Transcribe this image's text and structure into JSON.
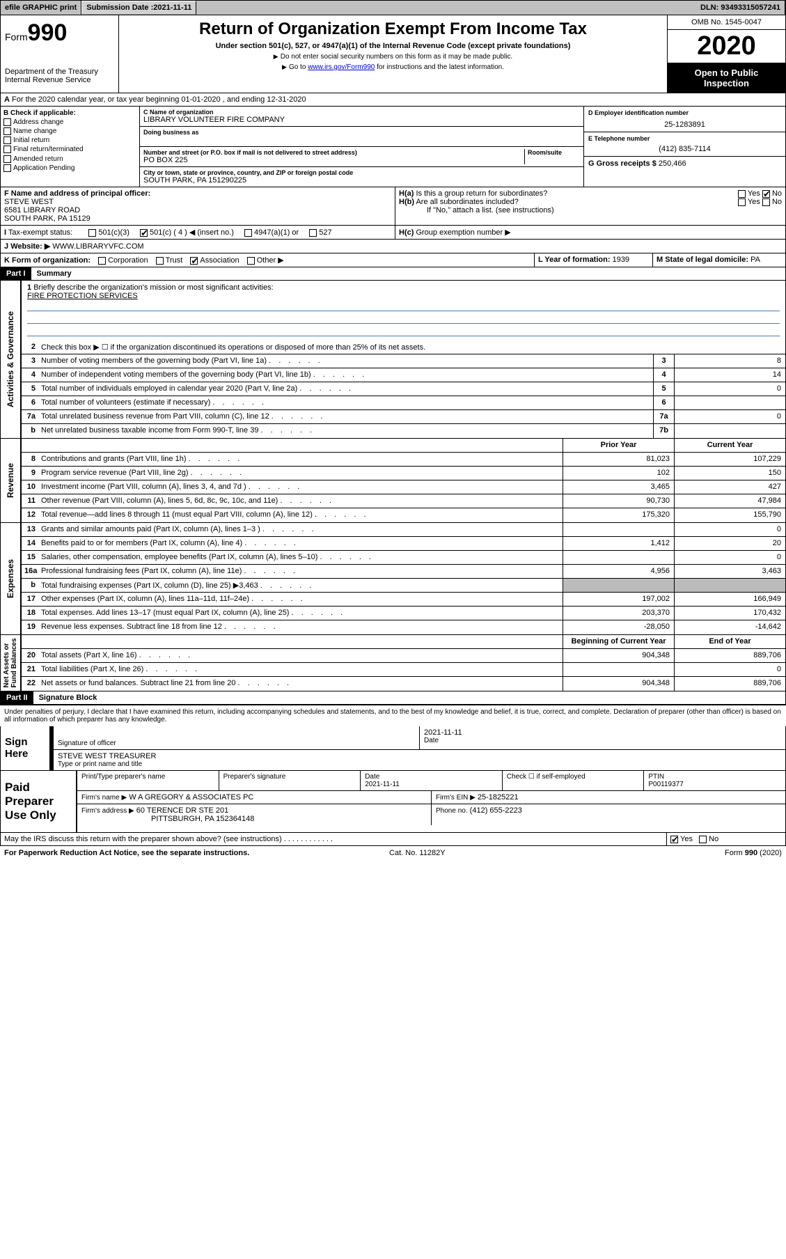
{
  "top": {
    "efile": "efile GRAPHIC print",
    "subdate_lbl": "Submission Date :",
    "subdate": "2021-11-11",
    "dln": "DLN: 93493315057241"
  },
  "head": {
    "form": "Form",
    "num": "990",
    "dept": "Department of the Treasury\nInternal Revenue Service",
    "title": "Return of Organization Exempt From Income Tax",
    "sub": "Under section 501(c), 527, or 4947(a)(1) of the Internal Revenue Code (except private foundations)",
    "note1": "Do not enter social security numbers on this form as it may be made public.",
    "note2a": "Go to ",
    "note2link": "www.irs.gov/Form990",
    "note2b": " for instructions and the latest information.",
    "omb": "OMB No. 1545-0047",
    "year": "2020",
    "open": "Open to Public Inspection"
  },
  "a": {
    "line": "For the 2020 calendar year, or tax year beginning 01-01-2020    , and ending 12-31-2020"
  },
  "b": {
    "hdr": "B Check if applicable:",
    "opts": [
      "Address change",
      "Name change",
      "Initial return",
      "Final return/terminated",
      "Amended return",
      "Application Pending"
    ]
  },
  "c": {
    "name_lbl": "C Name of organization",
    "name": "LIBRARY VOLUNTEER FIRE COMPANY",
    "dba_lbl": "Doing business as",
    "addr_lbl": "Number and street (or P.O. box if mail is not delivered to street address)",
    "room_lbl": "Room/suite",
    "addr": "PO BOX 225",
    "city_lbl": "City or town, state or province, country, and ZIP or foreign postal code",
    "city": "SOUTH PARK, PA  151290225"
  },
  "d": {
    "lbl": "D Employer identification number",
    "val": "25-1283891"
  },
  "e": {
    "lbl": "E Telephone number",
    "val": "(412) 835-7114"
  },
  "g": {
    "lbl": "G Gross receipts $",
    "val": "250,466"
  },
  "f": {
    "lbl": "F Name and address of principal officer:",
    "name": "STEVE WEST",
    "addr1": "6581 LIBRARY ROAD",
    "addr2": "SOUTH PARK, PA  15129"
  },
  "h": {
    "a": "Is this a group return for subordinates?",
    "b": "Are all subordinates included?",
    "bnote": "If \"No,\" attach a list. (see instructions)",
    "c": "Group exemption number ▶"
  },
  "i": {
    "lbl": "Tax-exempt status:",
    "opts": [
      "501(c)(3)",
      "501(c) ( 4 ) ◀ (insert no.)",
      "4947(a)(1) or",
      "527"
    ]
  },
  "j": {
    "lbl": "Website: ▶",
    "val": "WWW.LIBRARYVFC.COM"
  },
  "k": {
    "lbl": "K Form of organization:",
    "opts": [
      "Corporation",
      "Trust",
      "Association",
      "Other ▶"
    ]
  },
  "l": {
    "lbl": "L Year of formation:",
    "val": "1939"
  },
  "m": {
    "lbl": "M State of legal domicile:",
    "val": "PA"
  },
  "part1": {
    "title": "Part I",
    "sub": "Summary"
  },
  "summary": {
    "q1": "Briefly describe the organization's mission or most significant activities:",
    "mission": "FIRE PROTECTION SERVICES",
    "q2": "Check this box ▶ ☐  if the organization discontinued its operations or disposed of more than 25% of its net assets.",
    "rows": [
      {
        "n": "3",
        "d": "Number of voting members of the governing body (Part VI, line 1a)",
        "box": "3",
        "v": "8"
      },
      {
        "n": "4",
        "d": "Number of independent voting members of the governing body (Part VI, line 1b)",
        "box": "4",
        "v": "14"
      },
      {
        "n": "5",
        "d": "Total number of individuals employed in calendar year 2020 (Part V, line 2a)",
        "box": "5",
        "v": "0"
      },
      {
        "n": "6",
        "d": "Total number of volunteers (estimate if necessary)",
        "box": "6",
        "v": ""
      },
      {
        "n": "7a",
        "d": "Total unrelated business revenue from Part VIII, column (C), line 12",
        "box": "7a",
        "v": "0"
      },
      {
        "n": "b",
        "d": "Net unrelated business taxable income from Form 990-T, line 39",
        "box": "7b",
        "v": ""
      }
    ]
  },
  "cols": {
    "prior": "Prior Year",
    "current": "Current Year",
    "boy": "Beginning of Current Year",
    "eoy": "End of Year"
  },
  "revenue": [
    {
      "n": "8",
      "d": "Contributions and grants (Part VIII, line 1h)",
      "p": "81,023",
      "c": "107,229"
    },
    {
      "n": "9",
      "d": "Program service revenue (Part VIII, line 2g)",
      "p": "102",
      "c": "150"
    },
    {
      "n": "10",
      "d": "Investment income (Part VIII, column (A), lines 3, 4, and 7d )",
      "p": "3,465",
      "c": "427"
    },
    {
      "n": "11",
      "d": "Other revenue (Part VIII, column (A), lines 5, 6d, 8c, 9c, 10c, and 11e)",
      "p": "90,730",
      "c": "47,984"
    },
    {
      "n": "12",
      "d": "Total revenue—add lines 8 through 11 (must equal Part VIII, column (A), line 12)",
      "p": "175,320",
      "c": "155,790"
    }
  ],
  "expenses": [
    {
      "n": "13",
      "d": "Grants and similar amounts paid (Part IX, column (A), lines 1–3 )",
      "p": "",
      "c": "0"
    },
    {
      "n": "14",
      "d": "Benefits paid to or for members (Part IX, column (A), line 4)",
      "p": "1,412",
      "c": "20"
    },
    {
      "n": "15",
      "d": "Salaries, other compensation, employee benefits (Part IX, column (A), lines 5–10)",
      "p": "",
      "c": "0"
    },
    {
      "n": "16a",
      "d": "Professional fundraising fees (Part IX, column (A), line 11e)",
      "p": "4,956",
      "c": "3,463"
    },
    {
      "n": "b",
      "d": "Total fundraising expenses (Part IX, column (D), line 25) ▶3,463",
      "p": "shade",
      "c": "shade"
    },
    {
      "n": "17",
      "d": "Other expenses (Part IX, column (A), lines 11a–11d, 11f–24e)",
      "p": "197,002",
      "c": "166,949"
    },
    {
      "n": "18",
      "d": "Total expenses. Add lines 13–17 (must equal Part IX, column (A), line 25)",
      "p": "203,370",
      "c": "170,432"
    },
    {
      "n": "19",
      "d": "Revenue less expenses. Subtract line 18 from line 12",
      "p": "-28,050",
      "c": "-14,642"
    }
  ],
  "netassets": [
    {
      "n": "20",
      "d": "Total assets (Part X, line 16)",
      "p": "904,348",
      "c": "889,706"
    },
    {
      "n": "21",
      "d": "Total liabilities (Part X, line 26)",
      "p": "",
      "c": "0"
    },
    {
      "n": "22",
      "d": "Net assets or fund balances. Subtract line 21 from line 20",
      "p": "904,348",
      "c": "889,706"
    }
  ],
  "vlabels": {
    "ag": "Activities & Governance",
    "rev": "Revenue",
    "exp": "Expenses",
    "na": "Net Assets or\nFund Balances"
  },
  "part2": {
    "title": "Part II",
    "sub": "Signature Block"
  },
  "penalties": "Under penalties of perjury, I declare that I have examined this return, including accompanying schedules and statements, and to the best of my knowledge and belief, it is true, correct, and complete. Declaration of preparer (other than officer) is based on all information of which preparer has any knowledge.",
  "sign": {
    "here": "Sign Here",
    "sig_lbl": "Signature of officer",
    "date_lbl": "Date",
    "date": "2021-11-11",
    "name": "STEVE WEST  TREASURER",
    "name_lbl": "Type or print name and title"
  },
  "paid": {
    "title": "Paid Preparer Use Only",
    "cols": [
      "Print/Type preparer's name",
      "Preparer's signature",
      "Date",
      "Check ☐ if self-employed",
      "PTIN"
    ],
    "date": "2021-11-11",
    "ptin": "P00119377",
    "firm_lbl": "Firm's name    ▶",
    "firm": "W A GREGORY & ASSOCIATES PC",
    "ein_lbl": "Firm's EIN ▶",
    "ein": "25-1825221",
    "addr_lbl": "Firm's address ▶",
    "addr1": "60 TERENCE DR STE 201",
    "addr2": "PITTSBURGH, PA  152364148",
    "phone_lbl": "Phone no.",
    "phone": "(412) 655-2223"
  },
  "discuss": "May the IRS discuss this return with the preparer shown above? (see instructions)",
  "foot": {
    "l": "For Paperwork Reduction Act Notice, see the separate instructions.",
    "m": "Cat. No. 11282Y",
    "r": "Form 990 (2020)"
  },
  "yn": {
    "yes": "Yes",
    "no": "No"
  }
}
